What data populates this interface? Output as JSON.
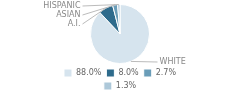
{
  "chart_data": {
    "type": "pie",
    "categories": [
      "88.0%",
      "8.0%",
      "2.7%",
      "1.3%"
    ],
    "values": [
      88.0,
      8.0,
      2.7,
      1.3
    ],
    "colors": [
      "#d6e4ee",
      "#2e6b8c",
      "#6a9db8",
      "#adc8d9"
    ],
    "annotations": [
      "WHITE",
      "A.I.",
      "ASIAN",
      "HISPANIC"
    ],
    "legend": "bottom"
  }
}
